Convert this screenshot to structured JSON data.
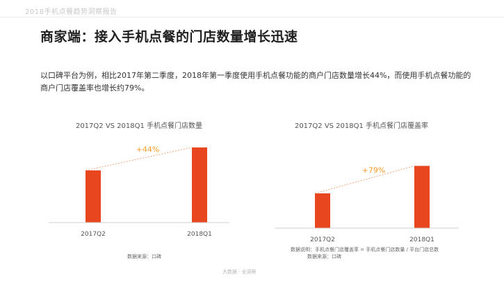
{
  "header": {
    "title": "2018手机点餐趋势洞察报告"
  },
  "slide_title": "商家端：接入手机点餐的门店数量增长迅速",
  "lead": "以口碑平台为例，相比2017年第二季度，2018年第一季度使用手机点餐功能的商户门店数量增长44%，而使用手机点餐功能的商户门店覆盖率也增长约79%。",
  "chart_data": [
    {
      "type": "bar",
      "title": "2017Q2 VS 2018Q1 手机点餐门店数量",
      "categories": [
        "2017Q2",
        "2018Q1"
      ],
      "values": [
        100,
        144
      ],
      "annotation": "+44%",
      "color": "#e8461e"
    },
    {
      "type": "bar",
      "title": "2017Q2 VS 2018Q1 手机点餐门店覆盖率",
      "categories": [
        "2017Q2",
        "2018Q1"
      ],
      "values": [
        100,
        179
      ],
      "annotation": "+79%",
      "color": "#e8461e"
    }
  ],
  "sources": {
    "left": "数据来源：口碑",
    "right_line1": "数据说明：手机点餐门店覆盖率 = 手机点餐门店数量 / 平台门店总数",
    "right_line2": "数据来源：口碑"
  },
  "footer": "大数据 · 全洞察"
}
